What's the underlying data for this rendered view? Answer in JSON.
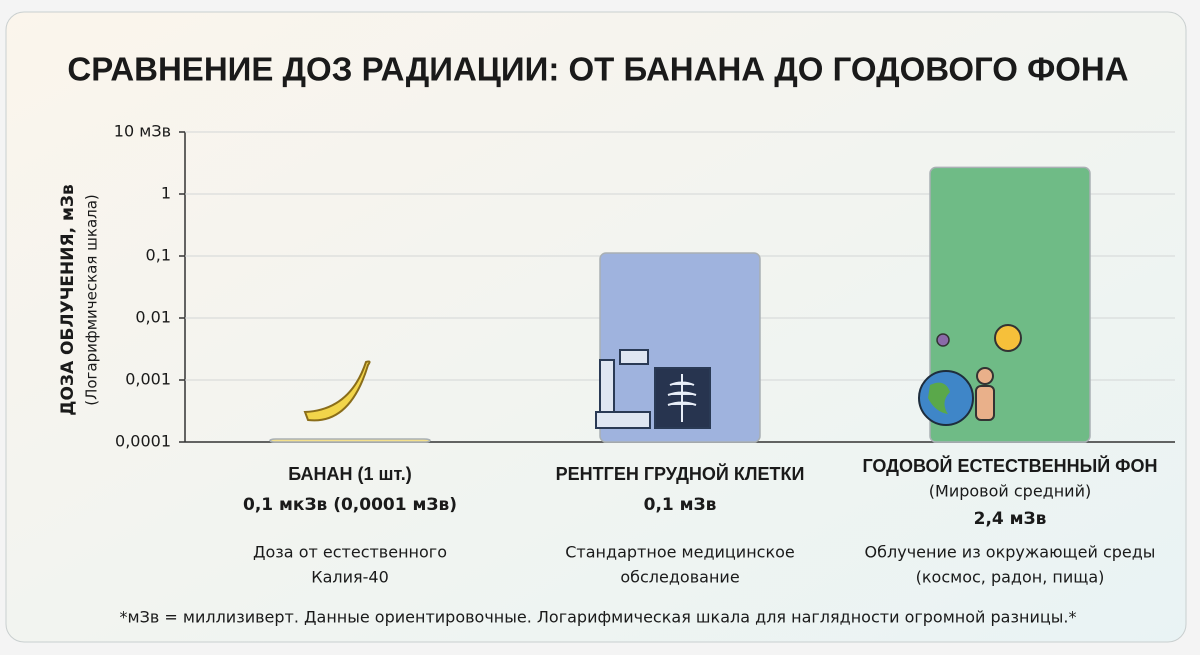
{
  "chart_data": {
    "type": "bar",
    "title": "СРАВНЕНИЕ ДОЗ РАДИАЦИИ: ОТ БАНАНА ДО ГОДОВОГО ФОНА",
    "y_label": "ДОЗА ОБЛУЧЕНИЯ, мЗв",
    "y_label_note": "(Логарифмическая шкала)",
    "categories": [
      "БАНАН (1 шт.)",
      "РЕНТГЕН ГРУДНОЙ КЛЕТКИ",
      "ГОДОВОЙ ЕСТЕСТВЕННЫЙ ФОН"
    ],
    "category_subtitles": {
      "2": "(Мировой средний)"
    },
    "values": [
      0.0001,
      0.1,
      2.4
    ],
    "value_labels": [
      "0,1 мкЗв (0,0001 мЗв)",
      "0,1 мЗв",
      "2,4 мЗв"
    ],
    "descriptions": [
      [
        "Доза от естественного",
        "Калия-40"
      ],
      [
        "Стандартное медицинское",
        "обследование"
      ],
      [
        "Облучение из окружающей среды",
        "(космос, радон, пища)"
      ]
    ],
    "colors": [
      "#f4e08c",
      "#9fb3de",
      "#6fbb86"
    ],
    "ylim": [
      0.0001,
      10
    ],
    "log_scale": true,
    "grid": true,
    "yticks": [
      {
        "value": 0.0001,
        "label": "0,0001"
      },
      {
        "value": 0.001,
        "label": "0,001"
      },
      {
        "value": 0.01,
        "label": "0,01"
      },
      {
        "value": 0.1,
        "label": "0,1"
      },
      1,
      {
        "value": 10,
        "label": "10 мЗв"
      }
    ],
    "footnote": "*мЗв = миллизиверт. Данные ориентировочные. Логарифмическая шкала для наглядности огромной разницы.*"
  }
}
